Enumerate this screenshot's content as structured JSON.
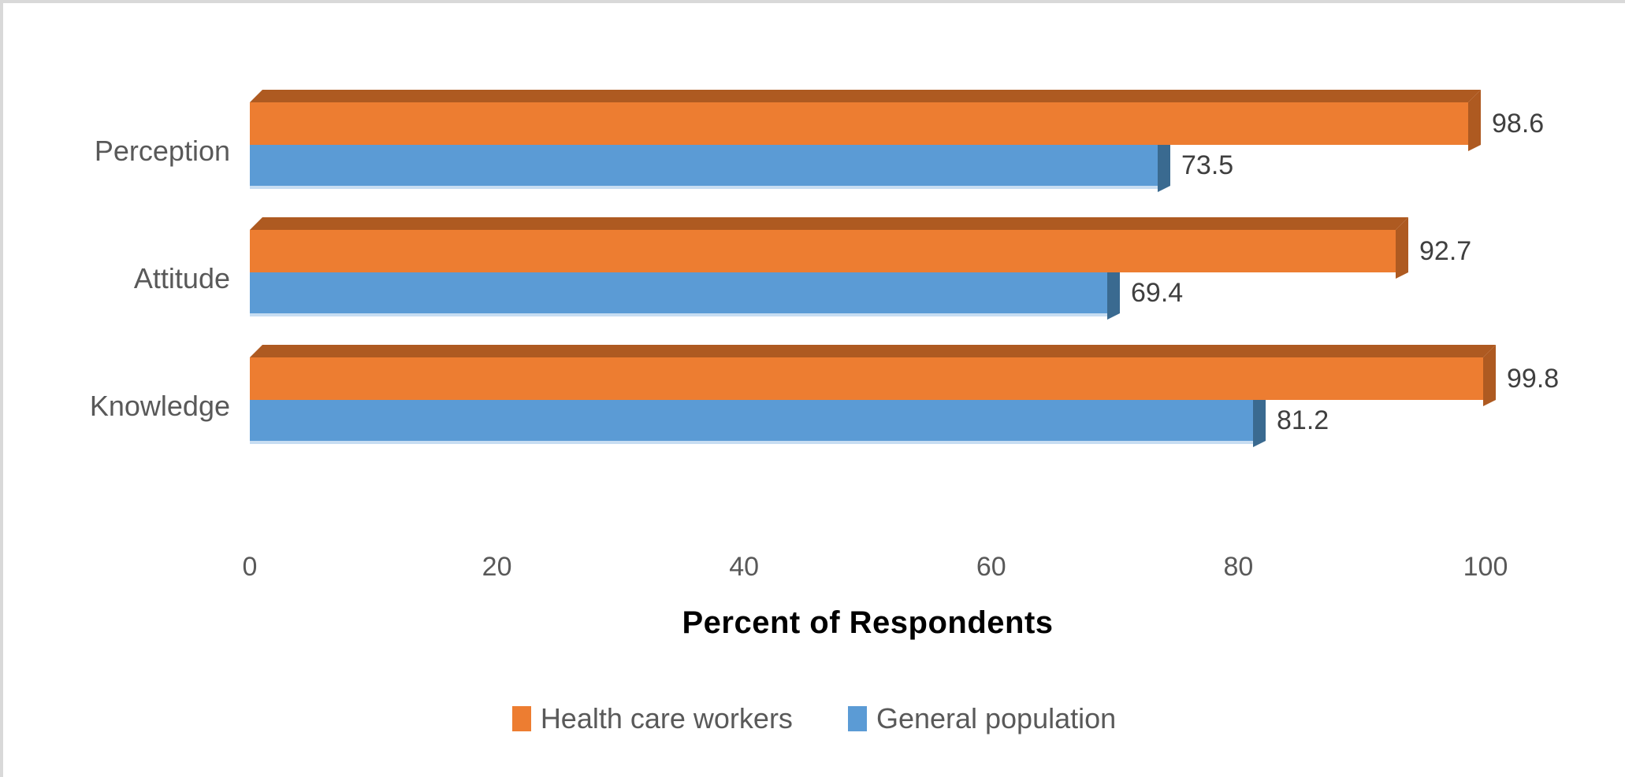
{
  "chart_data": {
    "type": "bar",
    "orientation": "horizontal",
    "style": "3d-clustered",
    "title": "",
    "categories": [
      "Perception",
      "Attitude",
      "Knowledge"
    ],
    "series": [
      {
        "name": "Health care workers",
        "color": "#ED7D31",
        "dark_color": "#AE5A21",
        "values": [
          98.6,
          92.7,
          99.8
        ]
      },
      {
        "name": "General population",
        "color": "#5B9BD5",
        "dark_color": "#3A6A90",
        "light_edge_color": "#C7DDF2",
        "values": [
          73.5,
          69.4,
          81.2
        ]
      }
    ],
    "data_labels": [
      "98.6",
      "73.5",
      "92.7",
      "69.4",
      "99.8",
      "81.2"
    ],
    "xlabel": "Percent of Respondents",
    "ylabel": "",
    "x_ticks": [
      0,
      20,
      40,
      60,
      80,
      100
    ],
    "xlim": [
      0,
      100
    ],
    "grid": false,
    "legend_position": "bottom",
    "legend_entries": [
      "Health care workers",
      "General population"
    ],
    "text_color": "#595959",
    "data_label_color": "#3f3f3f",
    "background_color": "#ffffff",
    "frame_border_color": "#d9d9d9"
  }
}
